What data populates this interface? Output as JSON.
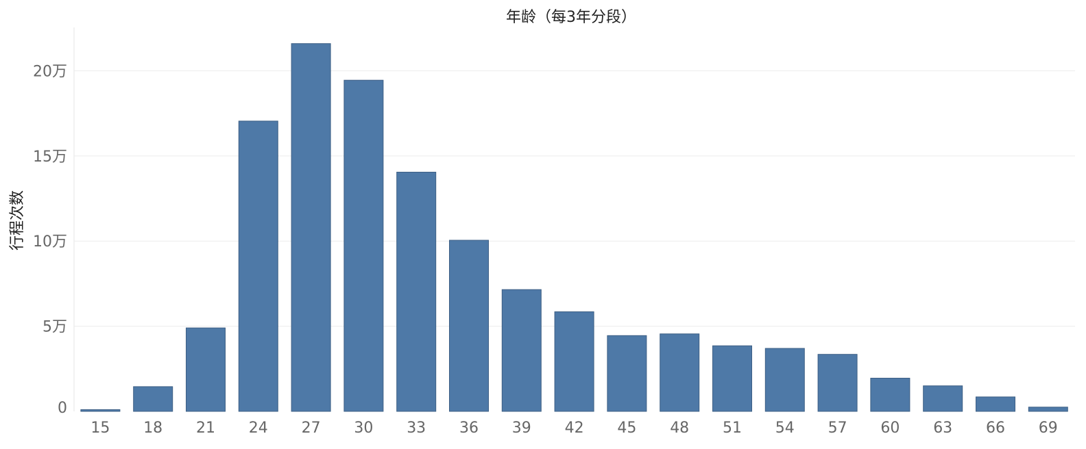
{
  "chart_data": {
    "type": "bar",
    "title": "年龄（每3年分段）",
    "xlabel": "",
    "ylabel": "行程次数",
    "categories": [
      "15",
      "18",
      "21",
      "24",
      "27",
      "30",
      "33",
      "36",
      "39",
      "42",
      "45",
      "48",
      "51",
      "54",
      "57",
      "60",
      "63",
      "66",
      "69"
    ],
    "values": [
      1000,
      14500,
      49000,
      170500,
      216000,
      194500,
      140500,
      100500,
      71500,
      58500,
      44500,
      45500,
      38500,
      37000,
      33500,
      19500,
      15000,
      8500,
      2500
    ],
    "yticks": [
      {
        "value": 0,
        "label": "0"
      },
      {
        "value": 50000,
        "label": "5万"
      },
      {
        "value": 100000,
        "label": "10万"
      },
      {
        "value": 150000,
        "label": "15万"
      },
      {
        "value": 200000,
        "label": "20万"
      }
    ],
    "ylim": [
      0,
      226000
    ],
    "grid": true,
    "bar_color": "#4e79a7",
    "bar_border_color": "#3d5f84",
    "grid_color": "#ececec"
  }
}
